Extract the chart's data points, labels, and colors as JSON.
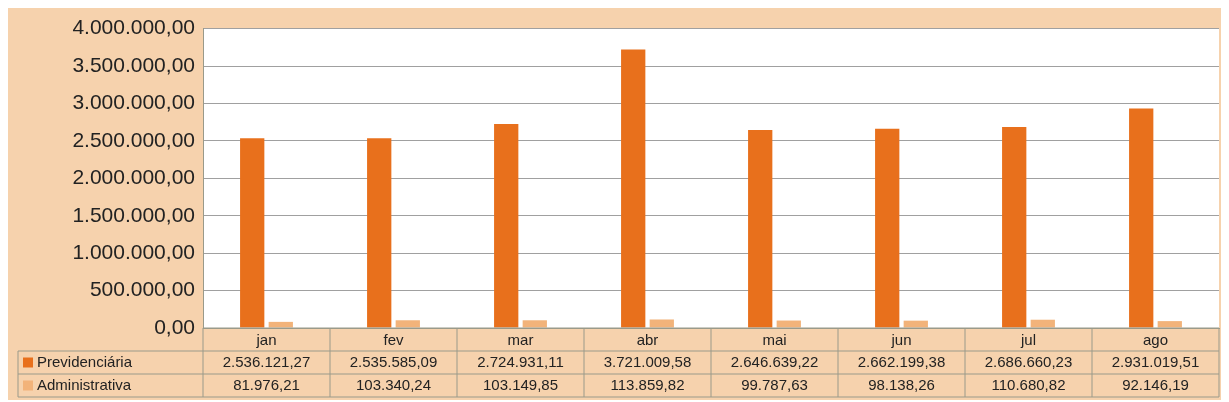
{
  "chart_data": {
    "type": "bar",
    "categories": [
      "jan",
      "fev",
      "mar",
      "abr",
      "mai",
      "jun",
      "jul",
      "ago"
    ],
    "series": [
      {
        "name": "Previdenciária",
        "color": "#e8701c",
        "values": [
          2536121.27,
          2535585.09,
          2724931.11,
          3721009.58,
          2646639.22,
          2662199.38,
          2686660.23,
          2931019.51
        ],
        "value_labels": [
          "2.536.121,27",
          "2.535.585,09",
          "2.724.931,11",
          "3.721.009,58",
          "2.646.639,22",
          "2.662.199,38",
          "2.686.660,23",
          "2.931.019,51"
        ]
      },
      {
        "name": "Administrativa",
        "color": "#f2b37a",
        "values": [
          81976.21,
          103340.24,
          103149.85,
          113859.82,
          99787.63,
          98138.26,
          110680.82,
          92146.19
        ],
        "value_labels": [
          "81.976,21",
          "103.340,24",
          "103.149,85",
          "113.859,82",
          "99.787,63",
          "98.138,26",
          "110.680,82",
          "92.146,19"
        ]
      }
    ],
    "ylim": [
      0,
      4000000
    ],
    "yticks": [
      {
        "value": 0,
        "label": "0,00"
      },
      {
        "value": 500000,
        "label": "500.000,00"
      },
      {
        "value": 1000000,
        "label": "1.000.000,00"
      },
      {
        "value": 1500000,
        "label": "1.500.000,00"
      },
      {
        "value": 2000000,
        "label": "2.000.000,00"
      },
      {
        "value": 2500000,
        "label": "2.500.000,00"
      },
      {
        "value": 3000000,
        "label": "3.000.000,00"
      },
      {
        "value": 3500000,
        "label": "3.500.000,00"
      },
      {
        "value": 4000000,
        "label": "4.000.000,00"
      }
    ],
    "grid": "y",
    "legend": "bottom"
  }
}
